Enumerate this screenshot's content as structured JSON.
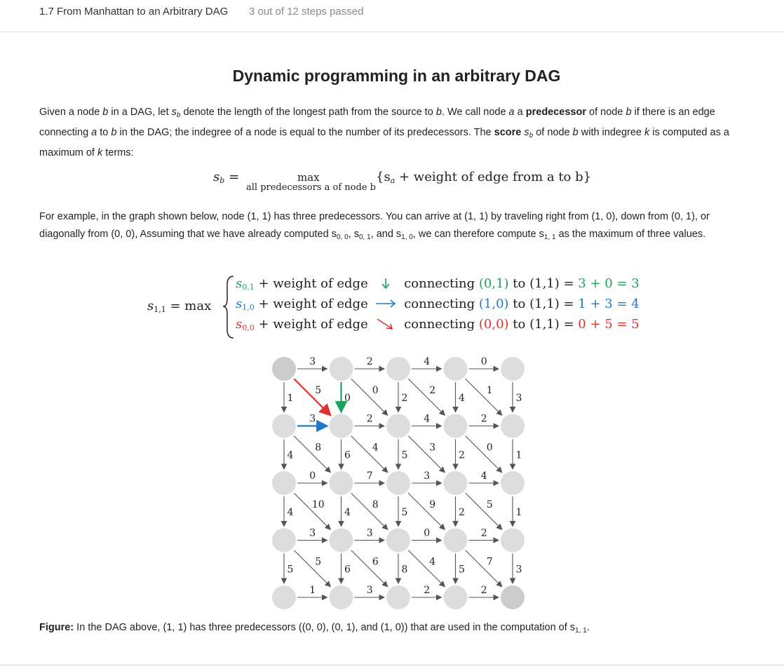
{
  "header": {
    "lesson_title": "1.7 From Manhattan to an Arbitrary DAG",
    "progress_text": "3 out of 12 steps passed"
  },
  "content": {
    "heading": "Dynamic programming in an arbitrary DAG",
    "formula_max": "max",
    "formula_max_under": "all predecessors a of node b",
    "formula_rhs": "{s",
    "formula_rhs_tail": " + weight of edge from a to b}",
    "eq_row1_text": " + weight of edge",
    "eq_row1_connect": "connecting",
    "eq_row1_from": "(0,1)",
    "eq_row1_to": "to (1,1) = ",
    "eq_row1_calc": "3 + 0 = 3",
    "eq_row2_from": "(1,0)",
    "eq_row2_calc": "1 + 3 = 4",
    "eq_row3_from": "(0,0)",
    "eq_row3_calc": "0 + 5 = 5",
    "caption_label": "Figure:",
    "caption_text": " In the DAG above, (1, 1) has three predecessors  ((0, 0), (0, 1), and (1, 0)) that are used in the computation of s"
  },
  "grid": {
    "rows": 5,
    "cols": 5,
    "right_weights": [
      [
        3,
        2,
        4,
        0
      ],
      [
        3,
        2,
        4,
        2
      ],
      [
        0,
        7,
        3,
        4
      ],
      [
        3,
        3,
        0,
        2
      ],
      [
        1,
        3,
        2,
        2
      ]
    ],
    "down_weights": [
      [
        1,
        0,
        2,
        4,
        3
      ],
      [
        4,
        6,
        5,
        2,
        1
      ],
      [
        4,
        4,
        5,
        2,
        1
      ],
      [
        5,
        6,
        8,
        5,
        3
      ]
    ],
    "diag_weights": [
      [
        5,
        0,
        2,
        1
      ],
      [
        8,
        4,
        3,
        0
      ],
      [
        10,
        8,
        9,
        5
      ],
      [
        5,
        6,
        4,
        7
      ]
    ],
    "highlight_colors": {
      "down": "#1aa35a",
      "right": "#1f78c8",
      "diag": "#e03131"
    }
  }
}
